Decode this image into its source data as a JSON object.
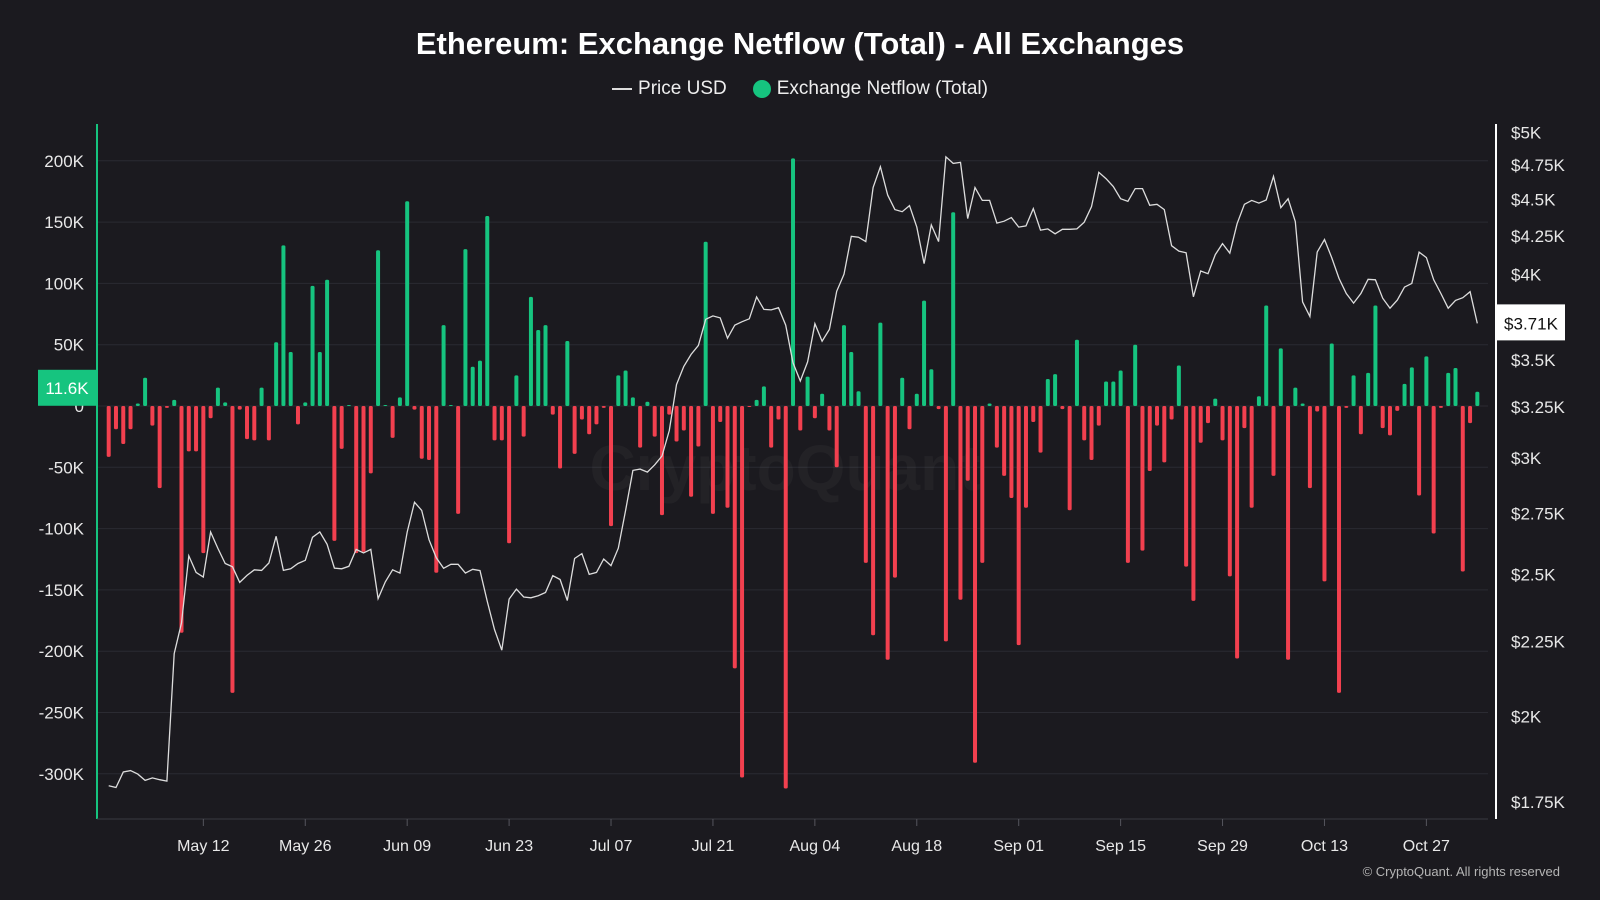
{
  "title": "Ethereum: Exchange Netflow (Total) - All Exchanges",
  "legend": [
    {
      "label": "Price USD",
      "color": "#dddddd",
      "icon": "line-icon"
    },
    {
      "label": "Exchange Netflow (Total)",
      "color": "#16c47f",
      "icon": "dot-icon"
    }
  ],
  "watermark": "CryptoQuant",
  "copyright": "© CryptoQuant. All rights reserved",
  "colors": {
    "positive": "#16c47f",
    "negative": "#f2404f",
    "price_line": "#dddddd",
    "background": "#1b1a1f"
  },
  "chart_data": {
    "type": "bar+line",
    "title": "Ethereum: Exchange Netflow (Total) - All Exchanges",
    "grid": true,
    "legend_position": "top-center",
    "x_tick_labels": [
      "May 12",
      "May 26",
      "Jun 09",
      "Jun 23",
      "Jul 07",
      "Jul 21",
      "Aug 04",
      "Aug 18",
      "Sep 01",
      "Sep 15",
      "Sep 29",
      "Oct 13",
      "Oct 27"
    ],
    "y_left": {
      "ticks": [
        "200K",
        "150K",
        "100K",
        "50K",
        "0",
        "-50K",
        "-100K",
        "-150K",
        "-200K",
        "-250K",
        "-300K"
      ],
      "tick_values": [
        200000,
        150000,
        100000,
        50000,
        0,
        -50000,
        -100000,
        -150000,
        -200000,
        -250000,
        -300000
      ],
      "current_label": "11.6K"
    },
    "y_right": {
      "scale": "log",
      "ticks": [
        "$5K",
        "$4.75K",
        "$4.5K",
        "$4.25K",
        "$4K",
        "$3.5K",
        "$3.25K",
        "$3K",
        "$2.75K",
        "$2.5K",
        "$2.25K",
        "$2K",
        "$1.75K"
      ],
      "tick_values": [
        5000,
        4750,
        4500,
        4250,
        4000,
        3500,
        3250,
        3000,
        2750,
        2500,
        2250,
        2000,
        1750
      ],
      "current_label": "$3.71K"
    },
    "x": [
      "Apr 29",
      "Apr 30",
      "May 1",
      "May 2",
      "May 3",
      "May 4",
      "May 5",
      "May 6",
      "May 7",
      "May 8",
      "May 9",
      "May 10",
      "May 11",
      "May 12",
      "May 13",
      "May 14",
      "May 15",
      "May 16",
      "May 17",
      "May 18",
      "May 19",
      "May 20",
      "May 21",
      "May 22",
      "May 23",
      "May 24",
      "May 25",
      "May 26",
      "May 27",
      "May 28",
      "May 29",
      "May 30",
      "May 31",
      "Jun 1",
      "Jun 2",
      "Jun 3",
      "Jun 4",
      "Jun 5",
      "Jun 6",
      "Jun 7",
      "Jun 8",
      "Jun 9",
      "Jun 10",
      "Jun 11",
      "Jun 12",
      "Jun 13",
      "Jun 14",
      "Jun 15",
      "Jun 16",
      "Jun 17",
      "Jun 18",
      "Jun 19",
      "Jun 20",
      "Jun 21",
      "Jun 22",
      "Jun 23",
      "Jun 24",
      "Jun 25",
      "Jun 26",
      "Jun 27",
      "Jun 28",
      "Jun 29",
      "Jun 30",
      "Jul 1",
      "Jul 2",
      "Jul 3",
      "Jul 4",
      "Jul 5",
      "Jul 6",
      "Jul 7",
      "Jul 8",
      "Jul 9",
      "Jul 10",
      "Jul 11",
      "Jul 12",
      "Jul 13",
      "Jul 14",
      "Jul 15",
      "Jul 16",
      "Jul 17",
      "Jul 18",
      "Jul 19",
      "Jul 20",
      "Jul 21",
      "Jul 22",
      "Jul 23",
      "Jul 24",
      "Jul 25",
      "Jul 26",
      "Jul 27",
      "Jul 28",
      "Jul 29",
      "Jul 30",
      "Jul 31",
      "Aug 1",
      "Aug 2",
      "Aug 3",
      "Aug 4",
      "Aug 5",
      "Aug 6",
      "Aug 7",
      "Aug 8",
      "Aug 9",
      "Aug 10",
      "Aug 11",
      "Aug 12",
      "Aug 13",
      "Aug 14",
      "Aug 15",
      "Aug 16",
      "Aug 17",
      "Aug 18",
      "Aug 19",
      "Aug 20",
      "Aug 21",
      "Aug 22",
      "Aug 23",
      "Aug 24",
      "Aug 25",
      "Aug 26",
      "Aug 27",
      "Aug 28",
      "Aug 29",
      "Aug 30",
      "Aug 31",
      "Sep 1",
      "Sep 2",
      "Sep 3",
      "Sep 4",
      "Sep 5",
      "Sep 6",
      "Sep 7",
      "Sep 8",
      "Sep 9",
      "Sep 10",
      "Sep 11",
      "Sep 12",
      "Sep 13",
      "Sep 14",
      "Sep 15",
      "Sep 16",
      "Sep 17",
      "Sep 18",
      "Sep 19",
      "Sep 20",
      "Sep 21",
      "Sep 22",
      "Sep 23",
      "Sep 24",
      "Sep 25",
      "Sep 26",
      "Sep 27",
      "Sep 28",
      "Sep 29",
      "Sep 30",
      "Oct 1",
      "Oct 2",
      "Oct 3",
      "Oct 4",
      "Oct 5",
      "Oct 6",
      "Oct 7",
      "Oct 8",
      "Oct 9",
      "Oct 10",
      "Oct 11",
      "Oct 12",
      "Oct 13",
      "Oct 14",
      "Oct 15",
      "Oct 16",
      "Oct 17",
      "Oct 18",
      "Oct 19",
      "Oct 20",
      "Oct 21",
      "Oct 22",
      "Oct 23",
      "Oct 24",
      "Oct 25",
      "Oct 26",
      "Oct 27",
      "Oct 28",
      "Oct 29",
      "Oct 30",
      "Oct 31",
      "Nov 1",
      "Nov 2",
      "Nov 3"
    ],
    "series": [
      {
        "name": "Exchange Netflow (Total)",
        "type": "bar",
        "axis": "left",
        "values": [
          -41500,
          -19000,
          -31000,
          -19000,
          2000,
          23000,
          -16000,
          -67000,
          -1500,
          5000,
          -185000,
          -37000,
          -37000,
          -120000,
          -10000,
          15000,
          3000,
          -234000,
          -3000,
          -27000,
          -28000,
          15000,
          -28000,
          52000,
          131000,
          44000,
          -15000,
          3000,
          98000,
          44000,
          103000,
          -110000,
          -35000,
          500,
          -120000,
          -119000,
          -55000,
          127000,
          500,
          -26000,
          7000,
          167000,
          -3000,
          -43000,
          -44000,
          -136000,
          66000,
          0,
          -88000,
          128000,
          32000,
          37000,
          155000,
          -28000,
          -28000,
          -112000,
          25000,
          -25000,
          89000,
          62000,
          66000,
          -7000,
          -51000,
          53000,
          -39000,
          -11000,
          -23000,
          -15000,
          -1500,
          -98000,
          25000,
          29000,
          7000,
          -34000,
          3500,
          -25000,
          -89000,
          -7000,
          -29000,
          -20000,
          -74000,
          -33000,
          134000,
          -88000,
          -13000,
          -83000,
          -214000,
          -303000,
          -700,
          5000,
          16000,
          -34000,
          -11000,
          -312000,
          202000,
          -20000,
          24000,
          -10000,
          10000,
          -20000,
          -50000,
          66000,
          44000,
          12000,
          -128000,
          -187000,
          68000,
          -207000,
          -140000,
          23000,
          -19000,
          10000,
          86000,
          30000,
          -2500,
          -192000,
          158000,
          -158000,
          -61000,
          -291000,
          -128000,
          2000,
          -34000,
          -57000,
          -75000,
          -195000,
          -83000,
          -13000,
          -38000,
          22000,
          26000,
          -2500,
          -85000,
          54000,
          -28000,
          -44000,
          -16000,
          20000,
          20000,
          29000,
          -128000,
          50000,
          -118000,
          -53000,
          -16000,
          -46000,
          -11000,
          33000,
          -131000,
          -159000,
          -30000,
          -14000,
          6000,
          -28000,
          -139000,
          -206000,
          -18000,
          -83000,
          8000,
          82000,
          -57000,
          47000,
          -207000,
          15000,
          2000,
          -67000,
          -4500,
          -143000,
          51000,
          -234000,
          -1500,
          25000,
          -23000,
          27000,
          82000,
          -18000,
          -24000,
          -4000,
          18000,
          31500,
          -73000,
          40500,
          -104000,
          -1500,
          27000,
          31000,
          -135000,
          -14000,
          11600
        ]
      },
      {
        "name": "Price USD",
        "type": "line",
        "axis": "right",
        "values": [
          1795,
          1790,
          1834,
          1838,
          1828,
          1810,
          1817,
          1812,
          1808,
          2208,
          2317,
          2574,
          2508,
          2490,
          2672,
          2604,
          2543,
          2530,
          2469,
          2496,
          2518,
          2516,
          2545,
          2654,
          2516,
          2522,
          2543,
          2556,
          2650,
          2672,
          2621,
          2525,
          2522,
          2532,
          2600,
          2586,
          2600,
          2407,
          2471,
          2518,
          2505,
          2672,
          2800,
          2764,
          2640,
          2566,
          2524,
          2540,
          2540,
          2505,
          2520,
          2515,
          2396,
          2293,
          2220,
          2405,
          2443,
          2413,
          2410,
          2418,
          2430,
          2495,
          2480,
          2400,
          2563,
          2583,
          2500,
          2508,
          2561,
          2535,
          2605,
          2764,
          2943,
          2949,
          2935,
          2969,
          3010,
          3133,
          3367,
          3464,
          3530,
          3580,
          3730,
          3750,
          3738,
          3621,
          3696,
          3716,
          3733,
          3863,
          3788,
          3785,
          3798,
          3696,
          3484,
          3386,
          3489,
          3704,
          3604,
          3671,
          3897,
          4003,
          4248,
          4242,
          4213,
          4586,
          4738,
          4532,
          4430,
          4415,
          4458,
          4310,
          4070,
          4325,
          4213,
          4812,
          4763,
          4770,
          4368,
          4586,
          4494,
          4494,
          4337,
          4350,
          4375,
          4310,
          4318,
          4437,
          4290,
          4298,
          4265,
          4295,
          4295,
          4298,
          4343,
          4450,
          4697,
          4650,
          4593,
          4506,
          4488,
          4578,
          4578,
          4460,
          4467,
          4430,
          4186,
          4151,
          4140,
          3864,
          4023,
          4006,
          4128,
          4200,
          4137,
          4333,
          4467,
          4494,
          4475,
          4497,
          4667,
          4443,
          4506,
          4348,
          3833,
          3746,
          4144,
          4227,
          4109,
          3977,
          3884,
          3826,
          3884,
          3971,
          3968,
          3855,
          3795,
          3844,
          3923,
          3946,
          4144,
          4109,
          3968,
          3884,
          3795,
          3842,
          3858,
          3895,
          3706
        ]
      }
    ]
  }
}
